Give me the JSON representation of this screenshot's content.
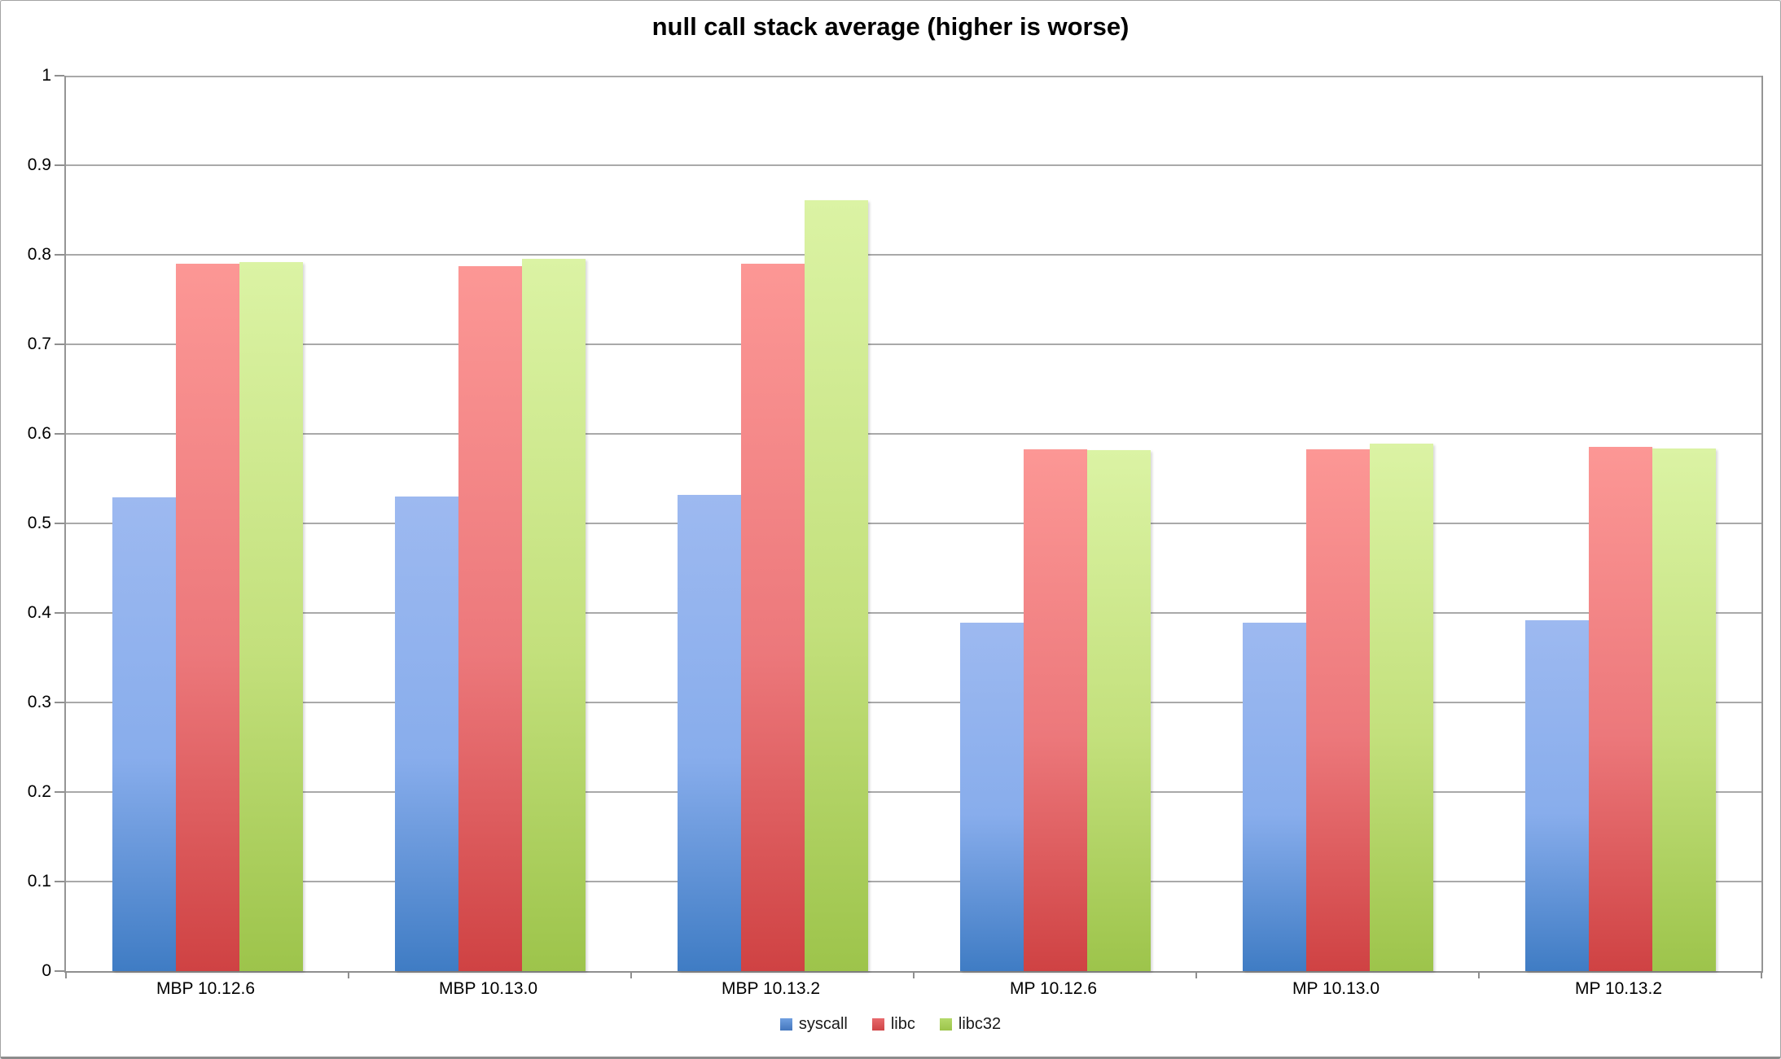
{
  "title": "null call stack average (higher is worse)",
  "chart_data": {
    "type": "bar",
    "title": "null call stack average (higher is worse)",
    "categories": [
      "MBP 10.12.6",
      "MBP 10.13.0",
      "MBP 10.13.2",
      "MP 10.12.6",
      "MP 10.13.0",
      "MP 10.13.2"
    ],
    "series": [
      {
        "name": "syscall",
        "values": [
          0.529,
          0.53,
          0.532,
          0.389,
          0.389,
          0.392
        ]
      },
      {
        "name": "libc",
        "values": [
          0.79,
          0.787,
          0.79,
          0.583,
          0.583,
          0.585
        ]
      },
      {
        "name": "libc32",
        "values": [
          0.792,
          0.795,
          0.861,
          0.582,
          0.589,
          0.584
        ]
      }
    ],
    "xlabel": "",
    "ylabel": "",
    "ylim": [
      0,
      1
    ],
    "ytick_interval": 0.1,
    "ytick_labels": [
      "0",
      "0.1",
      "0.2",
      "0.3",
      "0.4",
      "0.5",
      "0.6",
      "0.7",
      "0.8",
      "0.9",
      "1"
    ],
    "grid": true,
    "legend_position": "bottom"
  },
  "legend": {
    "items": [
      {
        "label": "syscall"
      },
      {
        "label": "libc"
      },
      {
        "label": "libc32"
      }
    ]
  },
  "colors": {
    "gridline": "#a9a9a9",
    "axis": "#8f8f8f",
    "series": {
      "syscall": {
        "top": "#9db9f0",
        "mid": "#88adec",
        "bottom": "#3f7cc4"
      },
      "libc": {
        "top": "#fc9795",
        "mid": "#ec787b",
        "bottom": "#cf4243"
      },
      "libc32": {
        "top": "#dbf3a4",
        "mid": "#c3e07c",
        "bottom": "#9dc44b"
      }
    },
    "legend_swatches": {
      "syscall": {
        "top": "#6f9fe0",
        "bottom": "#4376bd"
      },
      "libc": {
        "top": "#e8696c",
        "bottom": "#cf4547"
      },
      "libc32": {
        "top": "#b4d96a",
        "bottom": "#9cc44a"
      }
    }
  }
}
